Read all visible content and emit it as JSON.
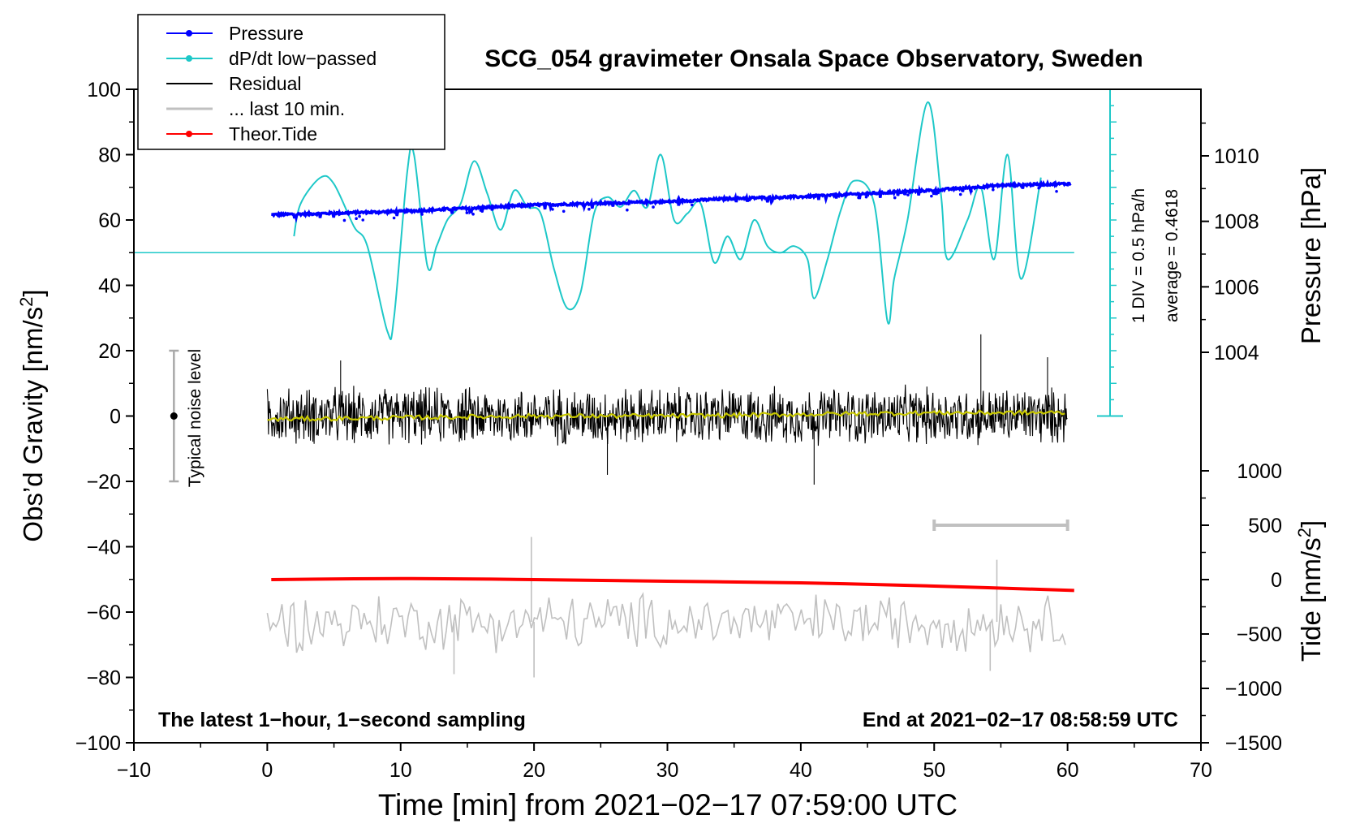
{
  "chart_data": {
    "type": "line",
    "title": "SCG_054 gravimeter Onsala Space Observatory, Sweden",
    "xlabel": "Time [min] from 2021−02−17 07:59:00 UTC",
    "ylabel_left_main": "Obs’d Gravity [nm/s",
    "ylabel_left_sup": "2",
    "ylabel_left_end": "]",
    "ylabel_right_pressure": "Pressure [hPa]",
    "ylabel_right_tide_main": "Tide [nm/s",
    "ylabel_right_tide_sup": "2",
    "ylabel_right_tide_end": "]",
    "xlim": [
      -10,
      70
    ],
    "ylim": [
      -100,
      100
    ],
    "x_ticks": [
      "−10",
      "0",
      "10",
      "20",
      "30",
      "40",
      "50",
      "60",
      "70"
    ],
    "y_ticks": [
      "100",
      "80",
      "60",
      "40",
      "20",
      "0",
      "−20",
      "−40",
      "−60",
      "−80",
      "−100"
    ],
    "pressure_axis": {
      "ticks": [
        "1010",
        "1008",
        "1006",
        "1004"
      ],
      "values": [
        1010,
        1008,
        1006,
        1004
      ]
    },
    "tide_axis": {
      "ticks": [
        "1000",
        "500",
        "0",
        "−500",
        "−1000",
        "−1500"
      ],
      "values": [
        1000,
        500,
        0,
        -500,
        -1000,
        -1500
      ]
    },
    "legend": {
      "position": "top-left",
      "items": [
        {
          "label": "Pressure",
          "color": "#0000ff",
          "marker": true
        },
        {
          "label": "dP/dt low−passed",
          "color": "#1ec8c8",
          "marker": true
        },
        {
          "label": "Residual",
          "color": "#000000",
          "marker": false
        },
        {
          "label": "... last 10 min.",
          "color": "#c0c0c0",
          "marker": false
        },
        {
          "label": "Theor.Tide",
          "color": "#ff0000",
          "marker": true
        }
      ]
    },
    "annotations": {
      "left_note": "The latest 1−hour, 1−second sampling",
      "right_note": "End at 2021−02−17 08:58:59 UTC",
      "noise_label": "Typical noise level",
      "noise_center": 0,
      "noise_half_range": 20,
      "noise_x": -7,
      "div_label": "1 DIV = 0.5 hPa/h",
      "average_label": "average = 0.4618",
      "last10_range": [
        50,
        60
      ]
    },
    "series": [
      {
        "name": "Pressure",
        "color": "#0000ff",
        "x": [
          0.3,
          5,
          10,
          15,
          20,
          25,
          30,
          35,
          40,
          45,
          50,
          55,
          60.3
        ],
        "values": [
          1008.2,
          1008.25,
          1008.3,
          1008.4,
          1008.5,
          1008.55,
          1008.6,
          1008.7,
          1008.75,
          1008.85,
          1008.95,
          1009.1,
          1009.15
        ]
      },
      {
        "name": "dP/dt low-passed",
        "color": "#1ec8c8",
        "baseline": 50,
        "x": [
          2,
          2.5,
          4,
          5,
          6.5,
          7.5,
          9,
          9.5,
          10.5,
          11,
          12,
          12.7,
          13.5,
          14.5,
          15.5,
          16.5,
          17.5,
          18.5,
          19.5,
          20.5,
          21.5,
          22.5,
          23.5,
          24.5,
          25.5,
          26.5,
          27.5,
          28.5,
          29.5,
          30.5,
          31.5,
          32.5,
          33.5,
          34.5,
          35.5,
          36.5,
          37.5,
          38.5,
          39.5,
          40.5,
          41,
          42,
          43,
          44,
          45.5,
          46.5,
          47,
          48,
          49.5,
          50.5,
          51,
          52.5,
          53.5,
          54.5,
          55.5,
          56.5,
          58
        ],
        "values": [
          55,
          65,
          73,
          71,
          58,
          52,
          26,
          30,
          75,
          80,
          46,
          52,
          60,
          65,
          78,
          68,
          57,
          69,
          64,
          62,
          45,
          33,
          38,
          62,
          67,
          64,
          69,
          64,
          80,
          60,
          62,
          65,
          47,
          55,
          48,
          60,
          52,
          50,
          52,
          48,
          36,
          48,
          63,
          72,
          65,
          29,
          42,
          60,
          96,
          68,
          48,
          60,
          70,
          48,
          80,
          42,
          73
        ]
      },
      {
        "name": "Residual",
        "color": "#000000",
        "x_range": [
          0,
          60
        ],
        "center": 0,
        "amplitude": 10,
        "spikes": [
          {
            "x": 5.5,
            "value": 17
          },
          {
            "x": 25.5,
            "value": -18
          },
          {
            "x": 41,
            "value": -21
          },
          {
            "x": 53.5,
            "value": 25
          },
          {
            "x": 58.5,
            "value": 18
          }
        ]
      },
      {
        "name": "Residual (smoothed)",
        "color": "#c8c800",
        "x": [
          0,
          10,
          20,
          30,
          40,
          50,
          60
        ],
        "values": [
          -1,
          -0.5,
          0,
          0,
          0.5,
          1,
          1
        ]
      },
      {
        "name": "... last 10 min.",
        "color": "#c0c0c0",
        "x_range": [
          0,
          60
        ],
        "center": -63,
        "amplitude": 10,
        "spikes": [
          {
            "x": 19.8,
            "value": -37
          },
          {
            "x": 14,
            "value": -79
          },
          {
            "x": 20,
            "value": -80
          },
          {
            "x": 54.7,
            "value": -44
          },
          {
            "x": 54.2,
            "value": -78
          }
        ]
      },
      {
        "name": "Theor.Tide",
        "color": "#ff0000",
        "x": [
          0.3,
          10,
          20,
          30,
          40,
          50,
          60.5
        ],
        "values": [
          0,
          10,
          0,
          -15,
          -30,
          -60,
          -100
        ]
      }
    ]
  }
}
